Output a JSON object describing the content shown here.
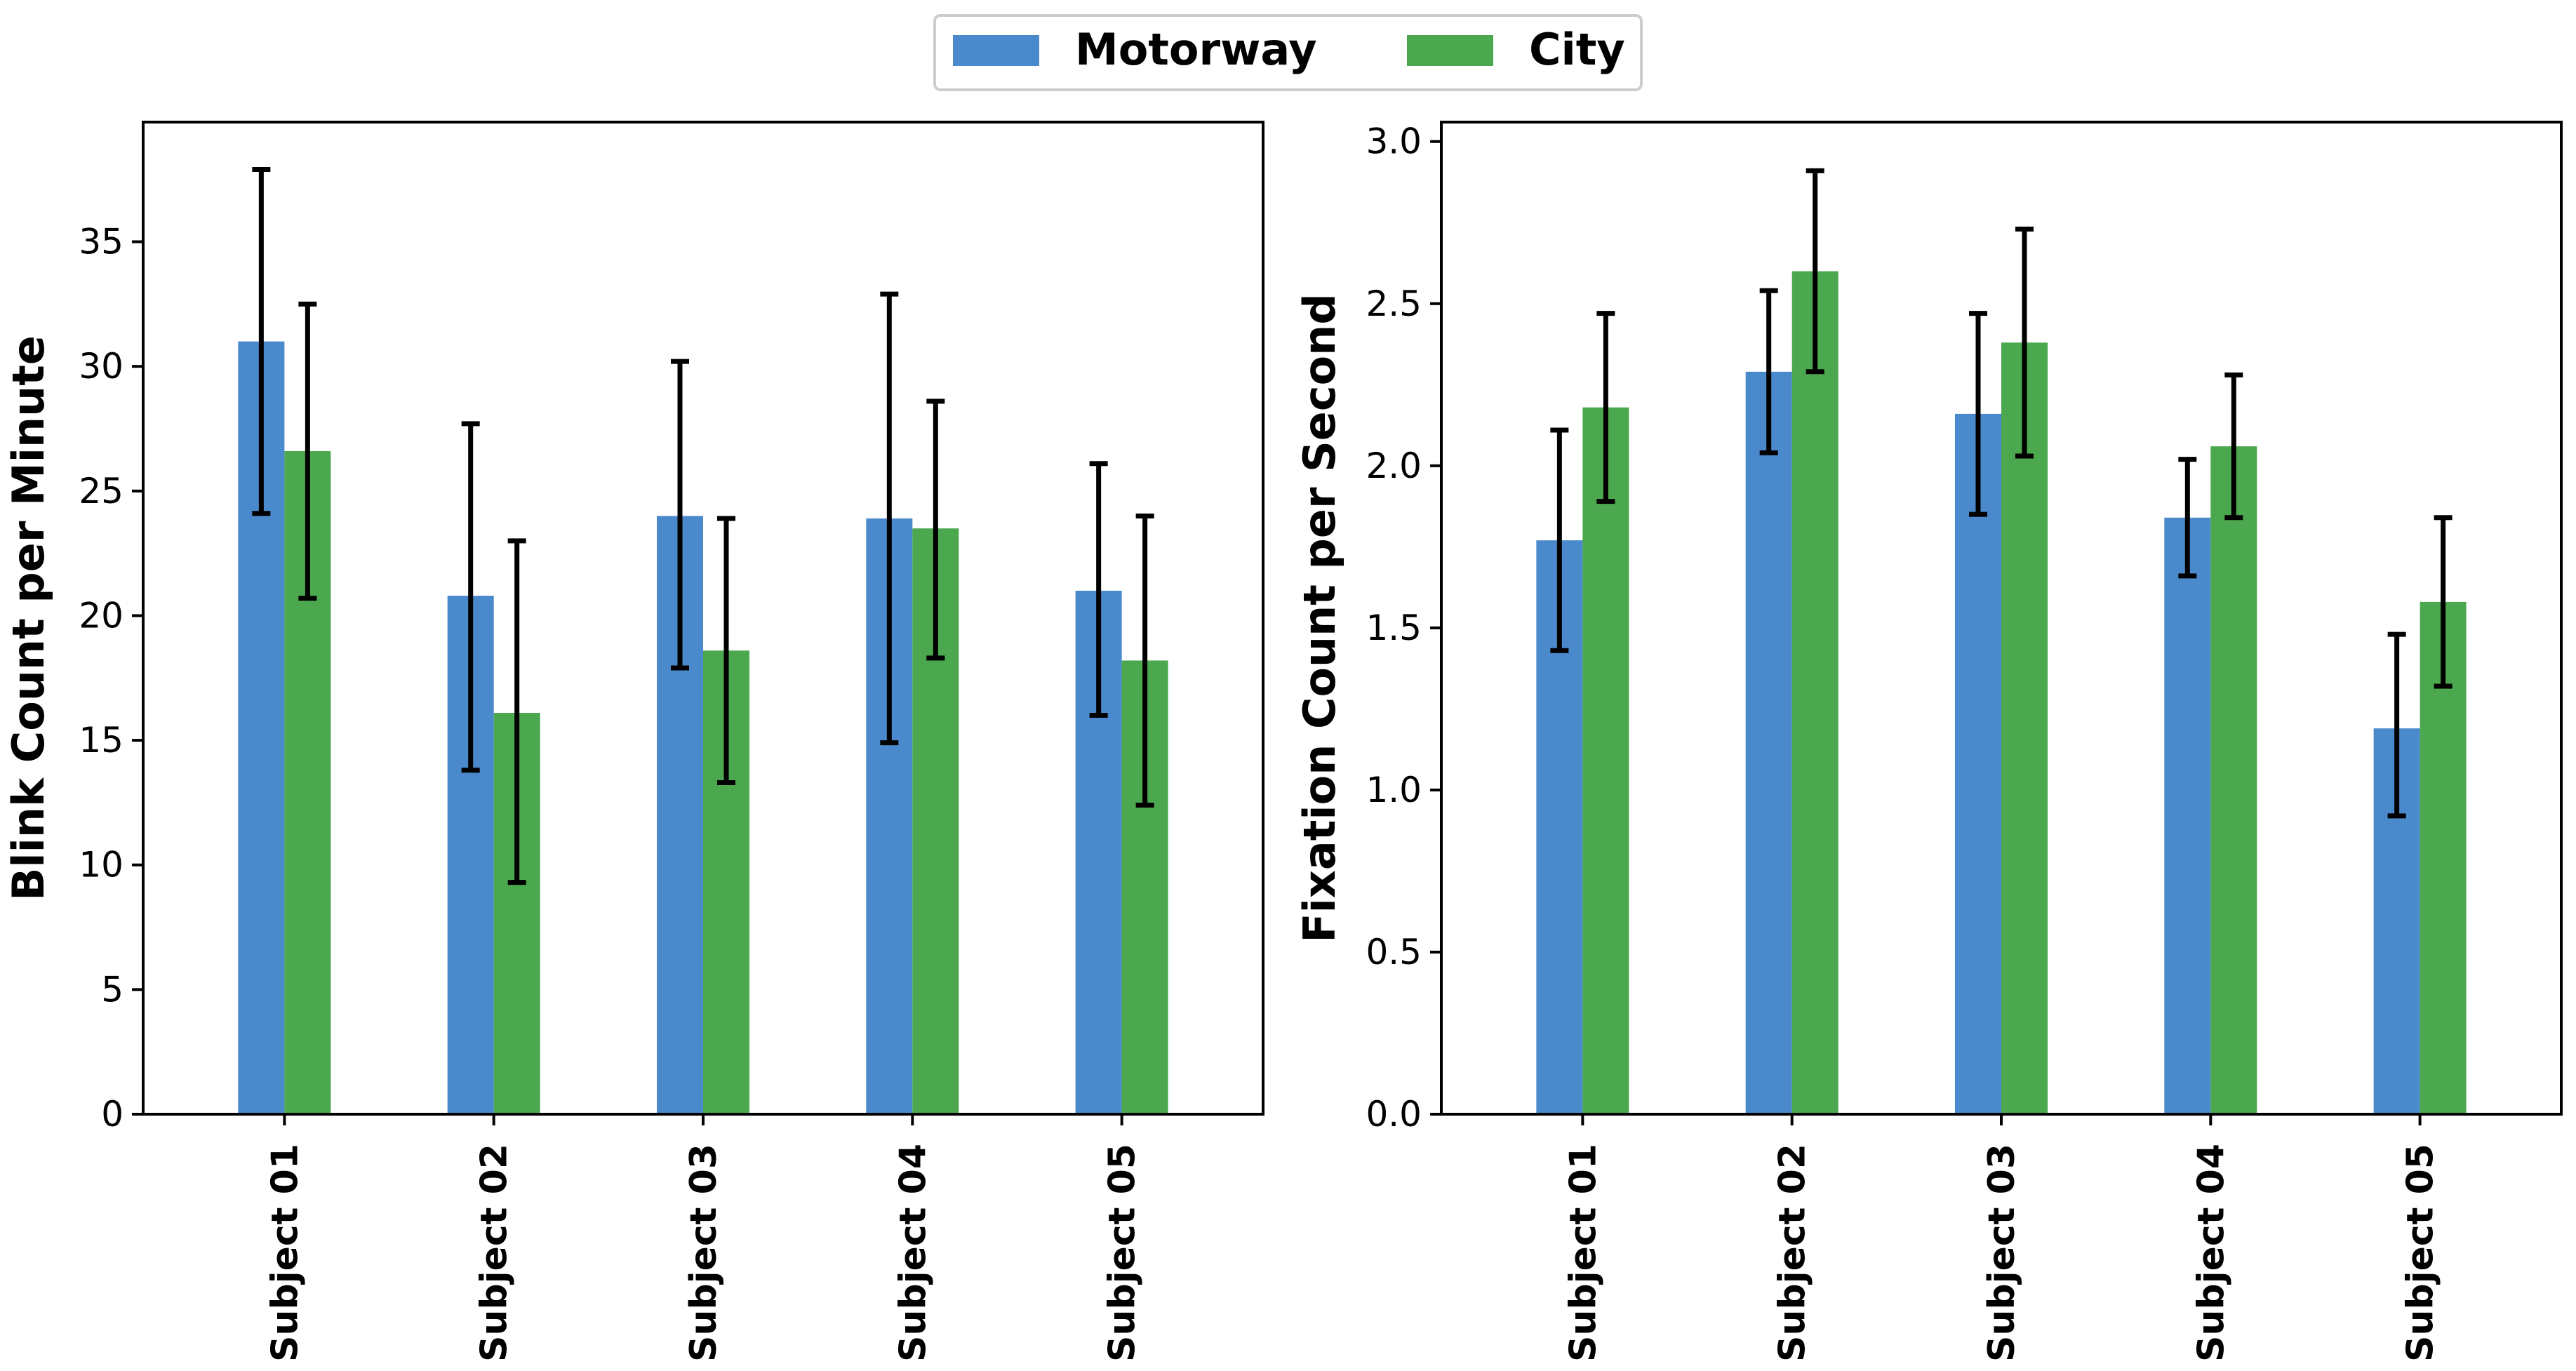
{
  "legend": {
    "entries": [
      {
        "label": "Motorway",
        "color": "#4A89CC"
      },
      {
        "label": "City",
        "color": "#4CA84F"
      }
    ]
  },
  "chart_data": [
    {
      "type": "bar",
      "title": "",
      "xlabel": "",
      "ylabel": "Blink Count per Minute",
      "categories": [
        "Subject 01",
        "Subject 02",
        "Subject 03",
        "Subject 04",
        "Subject 05"
      ],
      "ylim": [
        0,
        39.8
      ],
      "yticks": [
        0,
        5,
        10,
        15,
        20,
        25,
        30,
        35
      ],
      "ytick_labels": [
        "0",
        "5",
        "10",
        "15",
        "20",
        "25",
        "30",
        "35"
      ],
      "grid": false,
      "legend_position": "top-center",
      "series": [
        {
          "name": "Motorway",
          "color": "#4A89CC",
          "values": [
            31.0,
            20.8,
            24.0,
            23.9,
            21.0
          ],
          "error_low": [
            24.1,
            13.8,
            17.9,
            14.9,
            16.0
          ],
          "error_high": [
            37.9,
            27.7,
            30.2,
            32.9,
            26.1
          ]
        },
        {
          "name": "City",
          "color": "#4CA84F",
          "values": [
            26.6,
            16.1,
            18.6,
            23.5,
            18.2
          ],
          "error_low": [
            20.7,
            9.3,
            13.3,
            18.3,
            12.4
          ],
          "error_high": [
            32.5,
            23.0,
            23.9,
            28.6,
            24.0
          ]
        }
      ]
    },
    {
      "type": "bar",
      "title": "",
      "xlabel": "",
      "ylabel": "Fixation Count per Second",
      "categories": [
        "Subject 01",
        "Subject 02",
        "Subject 03",
        "Subject 04",
        "Subject 05"
      ],
      "ylim": [
        0,
        3.06
      ],
      "yticks": [
        0,
        0.5,
        1.0,
        1.5,
        2.0,
        2.5,
        3.0
      ],
      "ytick_labels": [
        "0.0",
        "0.5",
        "1.0",
        "1.5",
        "2.0",
        "2.5",
        "3.0"
      ],
      "grid": false,
      "legend_position": "top-center",
      "series": [
        {
          "name": "Motorway",
          "color": "#4A89CC",
          "values": [
            1.77,
            2.29,
            2.16,
            1.84,
            1.19
          ],
          "error_low": [
            1.43,
            2.04,
            1.85,
            1.66,
            0.92
          ],
          "error_high": [
            2.11,
            2.54,
            2.47,
            2.02,
            1.48
          ]
        },
        {
          "name": "City",
          "color": "#4CA84F",
          "values": [
            2.18,
            2.6,
            2.38,
            2.06,
            1.58
          ],
          "error_low": [
            1.89,
            2.29,
            2.03,
            1.84,
            1.32
          ],
          "error_high": [
            2.47,
            2.91,
            2.73,
            2.28,
            1.84
          ]
        }
      ]
    }
  ]
}
